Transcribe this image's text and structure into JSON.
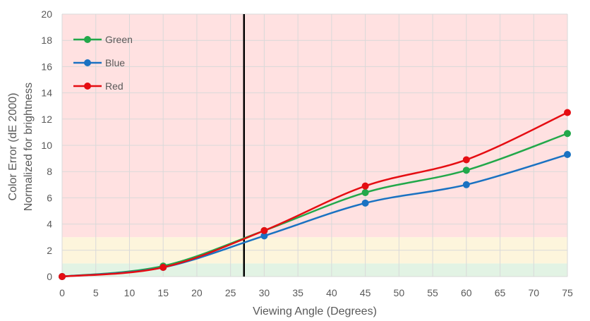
{
  "chart_data": {
    "type": "line",
    "xlabel": "Viewing Angle (Degrees)",
    "ylabel_lines": [
      "Color Error (dE 2000)",
      "Normalized for brightness"
    ],
    "xlim": [
      0,
      75
    ],
    "ylim": [
      0,
      20
    ],
    "x_ticks": [
      0,
      5,
      10,
      15,
      20,
      25,
      30,
      35,
      40,
      45,
      50,
      55,
      60,
      65,
      70,
      75
    ],
    "y_ticks": [
      0,
      2,
      4,
      6,
      8,
      10,
      12,
      14,
      16,
      18,
      20
    ],
    "grid": true,
    "legend_position": "top-left",
    "bands": [
      {
        "from": 0,
        "to": 1,
        "color": "#e2f3e4"
      },
      {
        "from": 1,
        "to": 3,
        "color": "#fdf5dc"
      },
      {
        "from": 3,
        "to": 20,
        "color": "#ffe1e1"
      }
    ],
    "reference_line_x": 27,
    "x": [
      0,
      15,
      30,
      45,
      60,
      75
    ],
    "series": [
      {
        "name": "Green",
        "color": "#22a84a",
        "values": [
          0,
          0.8,
          3.5,
          6.4,
          8.1,
          10.9
        ]
      },
      {
        "name": "Blue",
        "color": "#1a72c2",
        "values": [
          0,
          0.7,
          3.1,
          5.6,
          7.0,
          9.3
        ]
      },
      {
        "name": "Red",
        "color": "#e50d12",
        "values": [
          0,
          0.7,
          3.5,
          6.9,
          8.9,
          12.5
        ]
      }
    ]
  }
}
